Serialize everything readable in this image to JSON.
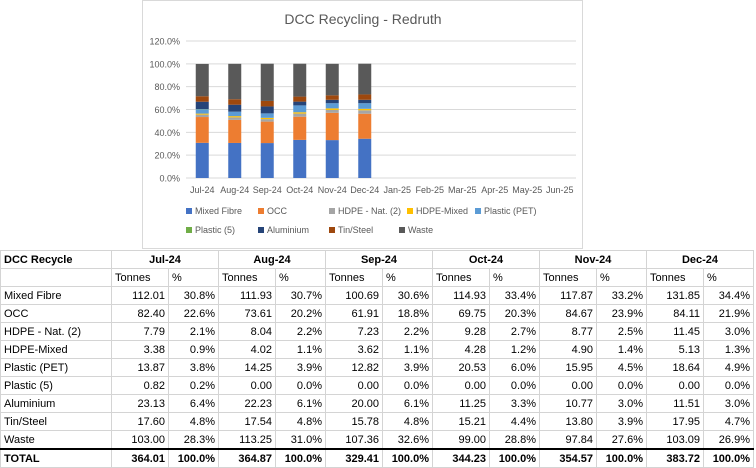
{
  "chart_data": {
    "type": "bar",
    "stacked": true,
    "title": "DCC Recycling - Redruth",
    "categories": [
      "Jul-24",
      "Aug-24",
      "Sep-24",
      "Oct-24",
      "Nov-24",
      "Dec-24",
      "Jan-25",
      "Feb-25",
      "Mar-25",
      "Apr-25",
      "May-25",
      "Jun-25"
    ],
    "yticks": [
      "0.0%",
      "20.0%",
      "40.0%",
      "60.0%",
      "80.0%",
      "100.0%",
      "120.0%"
    ],
    "ylim": [
      0,
      120
    ],
    "legend_position": "bottom",
    "series": [
      {
        "name": "Mixed Fibre",
        "color": "#4472C4",
        "values": [
          30.8,
          30.7,
          30.6,
          33.4,
          33.2,
          34.4,
          null,
          null,
          null,
          null,
          null,
          null
        ]
      },
      {
        "name": "OCC",
        "color": "#ED7D31",
        "values": [
          22.6,
          20.2,
          18.8,
          20.3,
          23.9,
          21.9,
          null,
          null,
          null,
          null,
          null,
          null
        ]
      },
      {
        "name": "HDPE - Nat. (2)",
        "color": "#A5A5A5",
        "values": [
          2.1,
          2.2,
          2.2,
          2.7,
          2.5,
          3.0,
          null,
          null,
          null,
          null,
          null,
          null
        ]
      },
      {
        "name": "HDPE-Mixed",
        "color": "#FFC000",
        "values": [
          0.9,
          1.1,
          1.1,
          1.2,
          1.4,
          1.3,
          null,
          null,
          null,
          null,
          null,
          null
        ]
      },
      {
        "name": "Plastic (PET)",
        "color": "#5B9BD5",
        "values": [
          3.8,
          3.9,
          3.9,
          6.0,
          4.5,
          4.9,
          null,
          null,
          null,
          null,
          null,
          null
        ]
      },
      {
        "name": "Plastic (5)",
        "color": "#70AD47",
        "values": [
          0.2,
          0.0,
          0.0,
          0.0,
          0.0,
          0.0,
          null,
          null,
          null,
          null,
          null,
          null
        ]
      },
      {
        "name": "Aluminium",
        "color": "#264478",
        "values": [
          6.4,
          6.1,
          6.1,
          3.3,
          3.0,
          3.0,
          null,
          null,
          null,
          null,
          null,
          null
        ]
      },
      {
        "name": "Tin/Steel",
        "color": "#9E480E",
        "values": [
          4.8,
          4.8,
          4.8,
          4.4,
          3.9,
          4.7,
          null,
          null,
          null,
          null,
          null,
          null
        ]
      },
      {
        "name": "Waste",
        "color": "#595959",
        "values": [
          28.3,
          31.0,
          32.6,
          28.8,
          27.6,
          26.9,
          null,
          null,
          null,
          null,
          null,
          null
        ]
      }
    ]
  },
  "table": {
    "corner_label": "DCC Recycle",
    "months": [
      "Jul-24",
      "Aug-24",
      "Sep-24",
      "Oct-24",
      "Nov-24",
      "Dec-24"
    ],
    "sub_tonnes": "Tonnes",
    "sub_pct": "%",
    "rows": [
      {
        "label": "Mixed Fibre",
        "cells": [
          "112.01",
          "30.8%",
          "111.93",
          "30.7%",
          "100.69",
          "30.6%",
          "114.93",
          "33.4%",
          "117.87",
          "33.2%",
          "131.85",
          "34.4%"
        ]
      },
      {
        "label": "OCC",
        "cells": [
          "82.40",
          "22.6%",
          "73.61",
          "20.2%",
          "61.91",
          "18.8%",
          "69.75",
          "20.3%",
          "84.67",
          "23.9%",
          "84.11",
          "21.9%"
        ]
      },
      {
        "label": "HDPE - Nat. (2)",
        "cells": [
          "7.79",
          "2.1%",
          "8.04",
          "2.2%",
          "7.23",
          "2.2%",
          "9.28",
          "2.7%",
          "8.77",
          "2.5%",
          "11.45",
          "3.0%"
        ]
      },
      {
        "label": "HDPE-Mixed",
        "cells": [
          "3.38",
          "0.9%",
          "4.02",
          "1.1%",
          "3.62",
          "1.1%",
          "4.28",
          "1.2%",
          "4.90",
          "1.4%",
          "5.13",
          "1.3%"
        ]
      },
      {
        "label": "Plastic (PET)",
        "cells": [
          "13.87",
          "3.8%",
          "14.25",
          "3.9%",
          "12.82",
          "3.9%",
          "20.53",
          "6.0%",
          "15.95",
          "4.5%",
          "18.64",
          "4.9%"
        ]
      },
      {
        "label": "Plastic (5)",
        "cells": [
          "0.82",
          "0.2%",
          "0.00",
          "0.0%",
          "0.00",
          "0.0%",
          "0.00",
          "0.0%",
          "0.00",
          "0.0%",
          "0.00",
          "0.0%"
        ]
      },
      {
        "label": "Aluminium",
        "cells": [
          "23.13",
          "6.4%",
          "22.23",
          "6.1%",
          "20.00",
          "6.1%",
          "11.25",
          "3.3%",
          "10.77",
          "3.0%",
          "11.51",
          "3.0%"
        ]
      },
      {
        "label": "Tin/Steel",
        "cells": [
          "17.60",
          "4.8%",
          "17.54",
          "4.8%",
          "15.78",
          "4.8%",
          "15.21",
          "4.4%",
          "13.80",
          "3.9%",
          "17.95",
          "4.7%"
        ]
      },
      {
        "label": "Waste",
        "cells": [
          "103.00",
          "28.3%",
          "113.25",
          "31.0%",
          "107.36",
          "32.6%",
          "99.00",
          "28.8%",
          "97.84",
          "27.6%",
          "103.09",
          "26.9%"
        ]
      }
    ],
    "total": {
      "label": "TOTAL",
      "cells": [
        "364.01",
        "100.0%",
        "364.87",
        "100.0%",
        "329.41",
        "100.0%",
        "344.23",
        "100.0%",
        "354.57",
        "100.0%",
        "383.72",
        "100.0%"
      ]
    }
  }
}
